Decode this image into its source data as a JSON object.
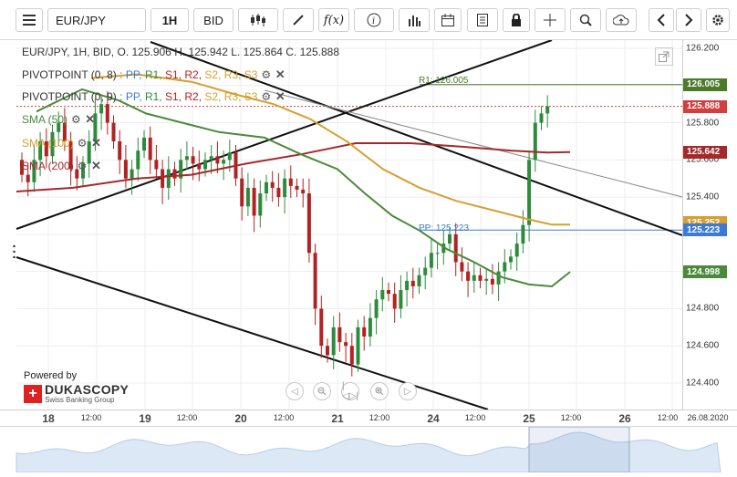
{
  "toolbar": {
    "menu_icon": "hamburger-menu-icon",
    "symbol": "EUR/JPY",
    "period": "1H",
    "side": "BID",
    "fx_label": "f(x)"
  },
  "legend": {
    "ohlc": "EUR/JPY, 1H, BID,  O. 125.906 H. 125.942 L. 125.864 C. 125.888",
    "pivot1": {
      "name": "PIVOTPOINT (0, 8)",
      "pp": "PP,",
      "r1": "R1,",
      "s1": "S1,",
      "r2": "R2,",
      "s2": "S2,",
      "r3": "R3,",
      "s3": "S3"
    },
    "pivot2": {
      "name": "PIVOTPOINT (0, 9)",
      "pp": "PP,",
      "r1": "R1,",
      "s1": "S1,",
      "r2": "R2,",
      "s2": "S2,",
      "r3": "R3,",
      "s3": "S3"
    },
    "sma50": "SMA (50)",
    "sma100": "SMA (100)",
    "sma200": "SMA (200)"
  },
  "annotations": {
    "r1_label": "R1: 126.005",
    "pp_label": "PP: 125.223"
  },
  "yaxis": {
    "labels": [
      "126.200",
      "125.800",
      "125.600",
      "125.400",
      "124.800",
      "124.600",
      "124.400"
    ],
    "tags": {
      "r1": "126.005",
      "price": "125.888",
      "sma200": "125.642",
      "sma100": "125.252",
      "pp": "125.223",
      "sma50": "124.998"
    }
  },
  "xaxis": {
    "labels": [
      {
        "text": "18",
        "day": true
      },
      {
        "text": "12:00",
        "day": false
      },
      {
        "text": "19",
        "day": true
      },
      {
        "text": "12:00",
        "day": false
      },
      {
        "text": "20",
        "day": true
      },
      {
        "text": "12:00",
        "day": false
      },
      {
        "text": "21",
        "day": true
      },
      {
        "text": "12:00",
        "day": false
      },
      {
        "text": "24",
        "day": true
      },
      {
        "text": "12:00",
        "day": false
      },
      {
        "text": "25",
        "day": true
      },
      {
        "text": "12:00",
        "day": false
      },
      {
        "text": "26",
        "day": true
      },
      {
        "text": "12:00",
        "day": false
      }
    ],
    "date": "26.08.2020"
  },
  "logo": {
    "powered": "Powered by",
    "brand": "DUKASCOPY",
    "sub": "Swiss Banking Group"
  },
  "colors": {
    "up": "#2e8b3d",
    "down": "#b22222",
    "sma50": "#4a8a3a",
    "sma100": "#d4a030",
    "sma200": "#a32a2a",
    "pivot_blue": "#3a7bd5",
    "r1_line": "#4a7a2a"
  },
  "chart_data": {
    "type": "candlestick",
    "symbol": "EUR/JPY",
    "timeframe": "1H",
    "ylim": [
      124.3,
      126.28
    ],
    "levels": {
      "R1": 126.005,
      "PP": 125.223,
      "SMA50": 124.998,
      "SMA100": 125.252,
      "SMA200": 125.642,
      "last": 125.888
    },
    "close": [
      125.52,
      125.48,
      125.6,
      125.7,
      125.62,
      125.75,
      125.8,
      125.7,
      125.55,
      125.5,
      125.58,
      125.7,
      125.85,
      125.9,
      125.8,
      125.7,
      125.6,
      125.5,
      125.55,
      125.65,
      125.72,
      125.6,
      125.55,
      125.45,
      125.55,
      125.5,
      125.6,
      125.62,
      125.58,
      125.55,
      125.6,
      125.62,
      125.58,
      125.6,
      125.64,
      125.5,
      125.35,
      125.45,
      125.3,
      125.42,
      125.48,
      125.45,
      125.4,
      125.5,
      125.46,
      125.44,
      125.42,
      125.1,
      124.8,
      124.6,
      124.55,
      124.7,
      124.62,
      124.6,
      124.5,
      124.7,
      124.65,
      124.75,
      124.85,
      124.9,
      124.88,
      124.8,
      124.9,
      124.95,
      124.92,
      124.98,
      125.02,
      125.1,
      125.1,
      125.15,
      125.2,
      125.05,
      125.0,
      124.95,
      124.98,
      124.95,
      124.96,
      124.93,
      125.0,
      125.05,
      125.08,
      125.15,
      125.25,
      125.6,
      125.8,
      125.85,
      125.888
    ]
  }
}
